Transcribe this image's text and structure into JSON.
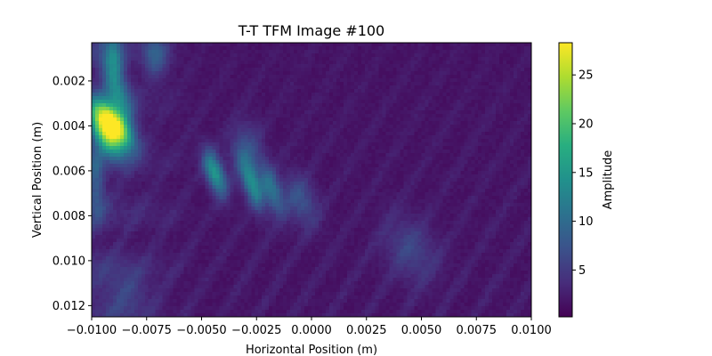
{
  "chart_data": {
    "type": "heatmap",
    "title": "T-T TFM Image #100",
    "xlabel": "Horizontal Position (m)",
    "ylabel": "Vertical Position (m)",
    "colorbar_label": "Amplitude",
    "colormap": "viridis",
    "xlim": [
      -0.01,
      0.01
    ],
    "ylim": [
      0.0125,
      0.0003
    ],
    "clim": [
      0.2,
      28.3
    ],
    "x_ticks": [
      -0.01,
      -0.0075,
      -0.005,
      -0.0025,
      0.0,
      0.0025,
      0.005,
      0.0075,
      0.01
    ],
    "x_tick_labels": [
      "−0.0100",
      "−0.0075",
      "−0.0050",
      "−0.0025",
      "0.0000",
      "0.0025",
      "0.0050",
      "0.0075",
      "0.0100"
    ],
    "y_ticks": [
      0.002,
      0.004,
      0.006,
      0.008,
      0.01,
      0.012
    ],
    "y_tick_labels": [
      "0.002",
      "0.004",
      "0.006",
      "0.008",
      "0.010",
      "0.012"
    ],
    "colorbar_ticks": [
      5,
      10,
      15,
      20,
      25
    ],
    "colorbar_tick_labels": [
      "5",
      "10",
      "15",
      "20",
      "25"
    ],
    "features": [
      {
        "x": -0.0091,
        "y": 0.0039,
        "amplitude": 27.5,
        "sx": 0.00045,
        "sy": 0.0007,
        "tilt": -2.2
      },
      {
        "x": -0.0094,
        "y": 0.0045,
        "amplitude": 14.0,
        "sx": 0.0004,
        "sy": 0.0007,
        "tilt": -2.0
      },
      {
        "x": -0.0088,
        "y": 0.0026,
        "amplitude": 10.0,
        "sx": 0.0004,
        "sy": 0.0012,
        "tilt": -1.0
      },
      {
        "x": -0.009,
        "y": 0.0008,
        "amplitude": 7.5,
        "sx": 0.0003,
        "sy": 0.0008,
        "tilt": 0.0
      },
      {
        "x": -0.0071,
        "y": 0.0008,
        "amplitude": 6.5,
        "sx": 0.0004,
        "sy": 0.0007,
        "tilt": 0.0
      },
      {
        "x": -0.0098,
        "y": 0.0065,
        "amplitude": 6.0,
        "sx": 0.0003,
        "sy": 0.0012,
        "tilt": 0.0
      },
      {
        "x": -0.0044,
        "y": 0.0061,
        "amplitude": 13.5,
        "sx": 0.0003,
        "sy": 0.0007,
        "tilt": -1.2
      },
      {
        "x": -0.0027,
        "y": 0.0066,
        "amplitude": 12.0,
        "sx": 0.0003,
        "sy": 0.0008,
        "tilt": -1.2
      },
      {
        "x": -0.0018,
        "y": 0.0068,
        "amplitude": 9.0,
        "sx": 0.0003,
        "sy": 0.0008,
        "tilt": -1.2
      },
      {
        "x": -0.003,
        "y": 0.005,
        "amplitude": 5.0,
        "sx": 0.0005,
        "sy": 0.0008,
        "tilt": 0.0
      },
      {
        "x": -0.0005,
        "y": 0.0073,
        "amplitude": 5.5,
        "sx": 0.0005,
        "sy": 0.0008,
        "tilt": -1.0
      },
      {
        "x": 0.0045,
        "y": 0.0095,
        "amplitude": 4.0,
        "sx": 0.0008,
        "sy": 0.001,
        "tilt": -1.0
      },
      {
        "x": -0.0085,
        "y": 0.0115,
        "amplitude": 3.5,
        "sx": 0.0008,
        "sy": 0.0008,
        "tilt": 0.0
      }
    ]
  }
}
